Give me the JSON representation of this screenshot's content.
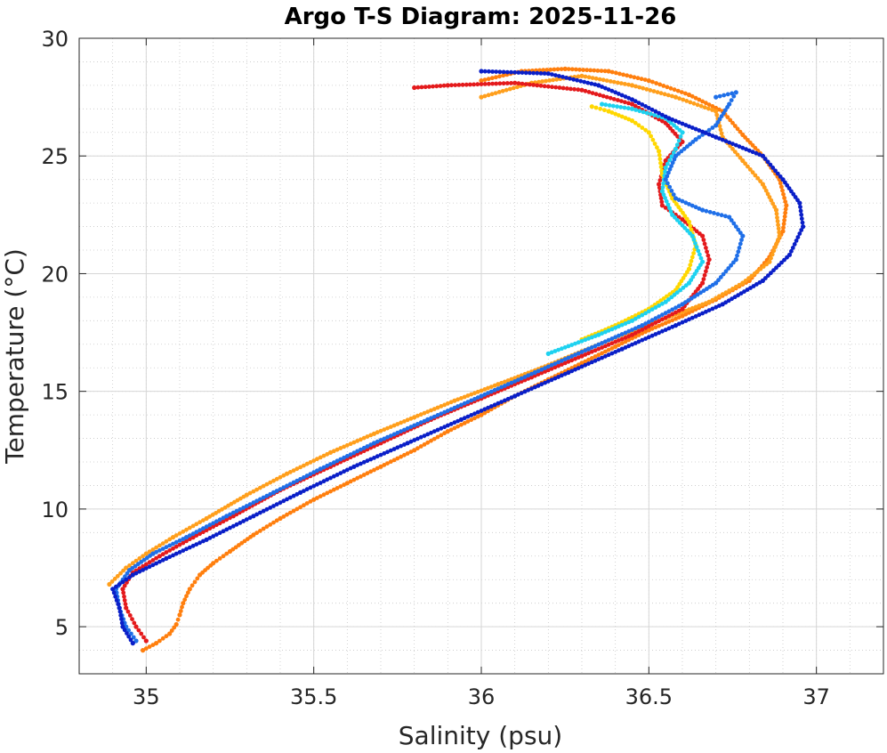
{
  "chart_data": {
    "type": "scatter",
    "title": "Argo T-S Diagram: 2025-11-26",
    "xlabel": "Salinity (psu)",
    "ylabel": "Temperature (°C)",
    "xlim": [
      34.8,
      37.2
    ],
    "ylim": [
      3,
      30
    ],
    "x_ticks": [
      35,
      35.5,
      36,
      36.5,
      37
    ],
    "x_tick_labels": [
      "35",
      "35.5",
      "36",
      "36.5",
      "37"
    ],
    "x_minor_step": 0.1,
    "y_ticks": [
      5,
      10,
      15,
      20,
      25,
      30
    ],
    "y_tick_labels": [
      "5",
      "10",
      "15",
      "20",
      "25",
      "30"
    ],
    "y_minor_step": 1,
    "grid": true,
    "minor_grid": true,
    "legend": "none",
    "colors": {
      "axis": "#262626",
      "grid_major": "#d6d6d6",
      "grid_minor": "#c8c8c8"
    },
    "series": [
      {
        "color": "#ff7f0e",
        "points": [
          [
            34.99,
            4.0
          ],
          [
            35.03,
            4.3
          ],
          [
            35.07,
            4.7
          ],
          [
            35.09,
            5.1
          ],
          [
            35.1,
            5.5
          ],
          [
            35.11,
            6.0
          ],
          [
            35.13,
            6.6
          ],
          [
            35.16,
            7.2
          ],
          [
            35.2,
            7.7
          ],
          [
            35.25,
            8.2
          ],
          [
            35.32,
            8.9
          ],
          [
            35.4,
            9.6
          ],
          [
            35.5,
            10.4
          ],
          [
            35.6,
            11.1
          ],
          [
            35.7,
            11.8
          ],
          [
            35.8,
            12.5
          ],
          [
            35.9,
            13.3
          ],
          [
            36.0,
            14.0
          ],
          [
            36.1,
            14.8
          ],
          [
            36.2,
            15.5
          ],
          [
            36.3,
            16.2
          ],
          [
            36.4,
            16.9
          ],
          [
            36.5,
            17.6
          ],
          [
            36.6,
            18.2
          ],
          [
            36.7,
            18.9
          ],
          [
            36.8,
            19.7
          ],
          [
            36.86,
            20.7
          ],
          [
            36.9,
            21.8
          ],
          [
            36.91,
            22.9
          ],
          [
            36.89,
            24.0
          ],
          [
            36.84,
            25.0
          ],
          [
            36.78,
            25.9
          ],
          [
            36.72,
            26.9
          ],
          [
            36.62,
            27.6
          ],
          [
            36.5,
            28.2
          ],
          [
            36.38,
            28.6
          ],
          [
            36.25,
            28.7
          ],
          [
            36.12,
            28.6
          ],
          [
            36.0,
            28.2
          ]
        ]
      },
      {
        "color": "#ff9f1c",
        "points": [
          [
            34.89,
            6.8
          ],
          [
            34.94,
            7.5
          ],
          [
            35.0,
            8.1
          ],
          [
            35.08,
            8.8
          ],
          [
            35.18,
            9.6
          ],
          [
            35.3,
            10.6
          ],
          [
            35.42,
            11.5
          ],
          [
            35.55,
            12.4
          ],
          [
            35.68,
            13.2
          ],
          [
            35.8,
            13.9
          ],
          [
            35.92,
            14.6
          ],
          [
            36.05,
            15.3
          ],
          [
            36.18,
            16.0
          ],
          [
            36.3,
            16.7
          ],
          [
            36.42,
            17.4
          ],
          [
            36.55,
            18.1
          ],
          [
            36.68,
            18.8
          ],
          [
            36.78,
            19.6
          ],
          [
            36.86,
            20.5
          ],
          [
            36.89,
            21.6
          ],
          [
            36.88,
            22.7
          ],
          [
            36.84,
            23.8
          ],
          [
            36.78,
            24.8
          ],
          [
            36.72,
            25.8
          ],
          [
            36.7,
            26.9
          ],
          [
            36.58,
            27.5
          ],
          [
            36.45,
            28.0
          ],
          [
            36.3,
            28.4
          ],
          [
            36.15,
            28.1
          ],
          [
            36.0,
            27.5
          ]
        ]
      },
      {
        "color": "#e41a1c",
        "points": [
          [
            35.0,
            4.4
          ],
          [
            34.97,
            5.0
          ],
          [
            34.94,
            5.8
          ],
          [
            34.93,
            6.6
          ],
          [
            34.96,
            7.3
          ],
          [
            35.04,
            8.0
          ],
          [
            35.14,
            8.8
          ],
          [
            35.26,
            9.7
          ],
          [
            35.4,
            10.8
          ],
          [
            35.55,
            11.8
          ],
          [
            35.7,
            12.8
          ],
          [
            35.85,
            13.8
          ],
          [
            36.0,
            14.7
          ],
          [
            36.15,
            15.6
          ],
          [
            36.3,
            16.5
          ],
          [
            36.45,
            17.4
          ],
          [
            36.6,
            18.5
          ],
          [
            36.66,
            19.6
          ],
          [
            36.68,
            20.6
          ],
          [
            36.66,
            21.6
          ],
          [
            36.6,
            22.3
          ],
          [
            36.54,
            22.9
          ],
          [
            36.53,
            23.8
          ],
          [
            36.55,
            24.8
          ],
          [
            36.6,
            25.6
          ],
          [
            36.55,
            26.4
          ],
          [
            36.45,
            27.2
          ],
          [
            36.3,
            27.8
          ],
          [
            36.1,
            28.1
          ],
          [
            35.9,
            28.0
          ],
          [
            35.8,
            27.9
          ]
        ]
      },
      {
        "color": "#ffd700",
        "points": [
          [
            36.3,
            17.2
          ],
          [
            36.4,
            17.8
          ],
          [
            36.5,
            18.5
          ],
          [
            36.58,
            19.3
          ],
          [
            36.62,
            20.2
          ],
          [
            36.64,
            21.2
          ],
          [
            36.62,
            22.2
          ],
          [
            36.57,
            23.2
          ],
          [
            36.54,
            24.2
          ],
          [
            36.53,
            25.2
          ],
          [
            36.5,
            26.0
          ],
          [
            36.45,
            26.5
          ],
          [
            36.38,
            26.9
          ],
          [
            36.33,
            27.1
          ]
        ]
      },
      {
        "color": "#1ed2f0",
        "points": [
          [
            36.2,
            16.6
          ],
          [
            36.35,
            17.4
          ],
          [
            36.45,
            18.0
          ],
          [
            36.55,
            18.8
          ],
          [
            36.62,
            19.6
          ],
          [
            36.66,
            20.5
          ],
          [
            36.63,
            21.6
          ],
          [
            36.57,
            22.5
          ],
          [
            36.54,
            23.5
          ],
          [
            36.55,
            24.5
          ],
          [
            36.58,
            25.3
          ],
          [
            36.6,
            26.0
          ],
          [
            36.55,
            26.6
          ],
          [
            36.45,
            27.0
          ],
          [
            36.36,
            27.2
          ]
        ]
      },
      {
        "color": "#1f6fe8",
        "points": [
          [
            34.97,
            4.4
          ],
          [
            34.94,
            5.0
          ],
          [
            34.92,
            5.8
          ],
          [
            34.91,
            6.6
          ],
          [
            34.95,
            7.4
          ],
          [
            35.02,
            8.1
          ],
          [
            35.12,
            8.8
          ],
          [
            35.24,
            9.7
          ],
          [
            35.38,
            10.7
          ],
          [
            35.52,
            11.7
          ],
          [
            35.68,
            12.8
          ],
          [
            35.84,
            13.8
          ],
          [
            36.0,
            14.8
          ],
          [
            36.16,
            15.8
          ],
          [
            36.32,
            16.8
          ],
          [
            36.48,
            17.8
          ],
          [
            36.6,
            18.7
          ],
          [
            36.7,
            19.6
          ],
          [
            36.76,
            20.6
          ],
          [
            36.78,
            21.6
          ],
          [
            36.74,
            22.4
          ],
          [
            36.66,
            22.7
          ],
          [
            36.58,
            23.2
          ],
          [
            36.55,
            24.0
          ],
          [
            36.58,
            25.0
          ],
          [
            36.64,
            25.7
          ],
          [
            36.7,
            26.3
          ],
          [
            36.74,
            27.2
          ],
          [
            36.76,
            27.7
          ],
          [
            36.7,
            27.5
          ]
        ]
      },
      {
        "color": "#0a1fc8",
        "points": [
          [
            34.96,
            4.3
          ],
          [
            34.93,
            5.0
          ],
          [
            34.92,
            5.8
          ],
          [
            34.9,
            6.6
          ],
          [
            34.96,
            7.2
          ],
          [
            35.06,
            7.9
          ],
          [
            35.18,
            8.7
          ],
          [
            35.32,
            9.7
          ],
          [
            35.46,
            10.7
          ],
          [
            35.62,
            11.8
          ],
          [
            35.78,
            12.8
          ],
          [
            35.94,
            13.8
          ],
          [
            36.1,
            14.8
          ],
          [
            36.26,
            15.8
          ],
          [
            36.42,
            16.8
          ],
          [
            36.58,
            17.8
          ],
          [
            36.72,
            18.7
          ],
          [
            36.84,
            19.7
          ],
          [
            36.92,
            20.8
          ],
          [
            36.96,
            22.0
          ],
          [
            36.95,
            23.0
          ],
          [
            36.9,
            24.0
          ],
          [
            36.84,
            25.0
          ],
          [
            36.7,
            25.8
          ],
          [
            36.56,
            26.6
          ],
          [
            36.45,
            27.4
          ],
          [
            36.35,
            28.0
          ],
          [
            36.2,
            28.5
          ],
          [
            36.0,
            28.6
          ]
        ]
      }
    ]
  }
}
